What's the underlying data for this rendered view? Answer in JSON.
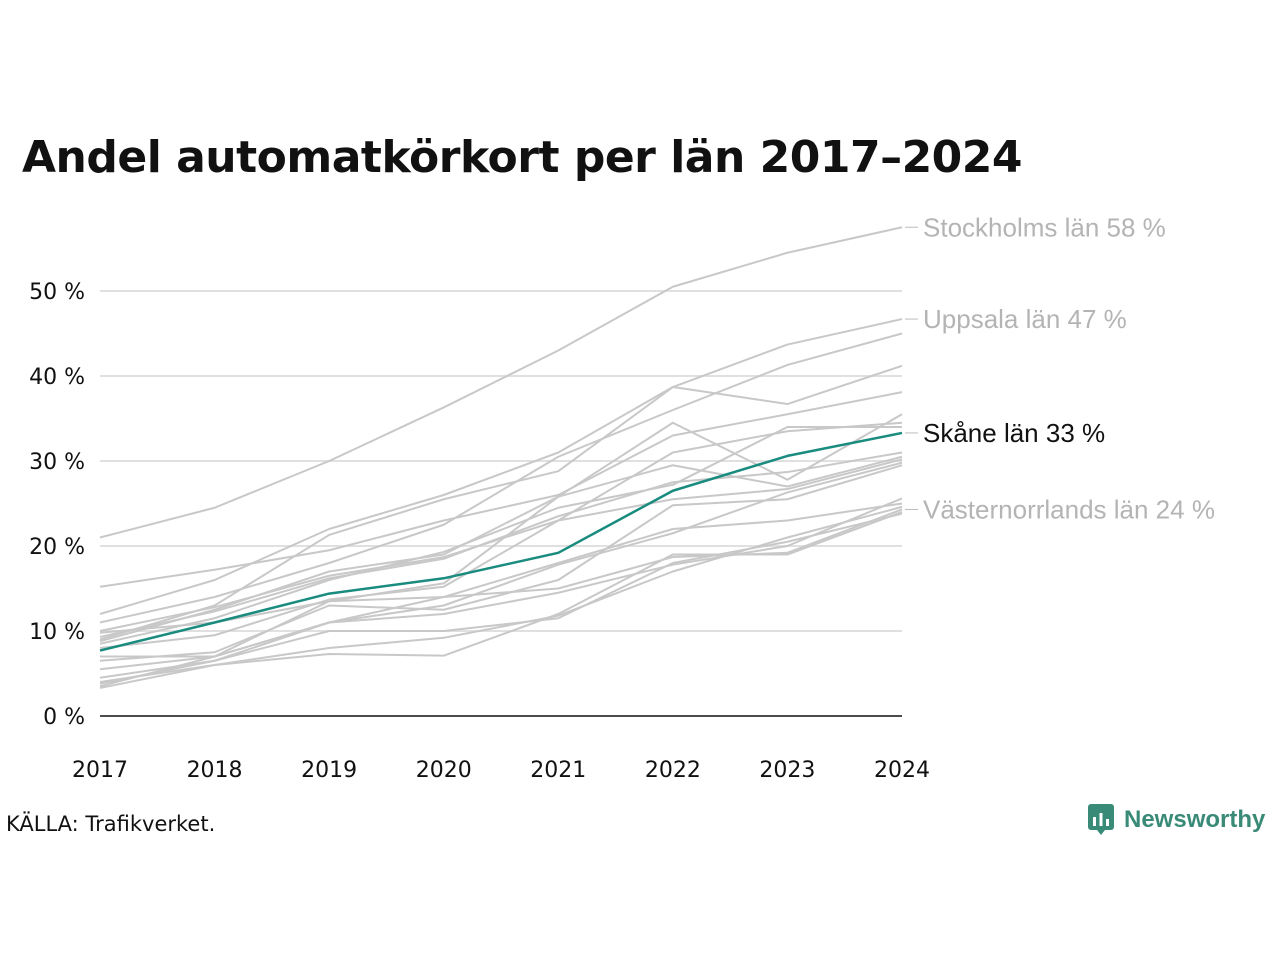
{
  "title": "Andel automatkörkort per län 2017–2024",
  "source": "KÄLLA: Trafikverket.",
  "brand": {
    "name": "Newsworthy",
    "icon": "newsworthy-logo-icon"
  },
  "colors": {
    "highlight": "#1a8b7f",
    "background_lines": "#c8c8c8",
    "grid": "#e0e0e0",
    "axis": "#111111",
    "brand": "#3a8a78"
  },
  "chart_data": {
    "type": "line",
    "x": [
      2017,
      2018,
      2019,
      2020,
      2021,
      2022,
      2023,
      2024
    ],
    "ylim": [
      0,
      60
    ],
    "yticks": [
      0,
      10,
      20,
      30,
      40,
      50
    ],
    "ytick_labels": [
      "0 %",
      "10 %",
      "20 %",
      "30 %",
      "40 %",
      "50 %"
    ],
    "xtick_labels": [
      "2017",
      "2018",
      "2019",
      "2020",
      "2021",
      "2022",
      "2023",
      "2024"
    ],
    "grid": "horizontal",
    "highlight_series": "Skåne län",
    "series": [
      {
        "name": "Stockholms län",
        "label": "Stockholms län 58 %",
        "values": [
          21,
          24.5,
          30,
          36.3,
          43,
          50.5,
          54.5,
          57.5
        ]
      },
      {
        "name": "Uppsala län",
        "label": "Uppsala län 47 %",
        "values": [
          12,
          16,
          22,
          26,
          31,
          38.7,
          43.7,
          46.7
        ]
      },
      {
        "name": "Skåne län",
        "label": "Skåne län 33 %",
        "values": [
          7.7,
          11,
          14.4,
          16.2,
          19.2,
          26.5,
          30.6,
          33.3
        ]
      },
      {
        "name": "Västernorrlands län",
        "label": "Västernorrlands län 24 %",
        "values": [
          5.5,
          7,
          11,
          14,
          15,
          18.7,
          19.2,
          24.3
        ]
      },
      {
        "values": [
          11,
          14,
          18,
          22.5,
          30.5,
          36,
          41.3,
          45
        ]
      },
      {
        "values": [
          9,
          13,
          21.3,
          25.5,
          28.8,
          38.7,
          36.7,
          41.2
        ]
      },
      {
        "values": [
          15.2,
          17.2,
          19.5,
          23,
          26,
          33,
          35.5,
          38.1
        ]
      },
      {
        "values": [
          8.8,
          12.5,
          17,
          19,
          25.8,
          34.5,
          27.8,
          35.5
        ]
      },
      {
        "values": [
          10,
          12.8,
          16.5,
          18.7,
          23,
          31,
          33.5,
          34.5
        ]
      },
      {
        "values": [
          8.5,
          11.5,
          16,
          19.3,
          24.5,
          27.2,
          34,
          34
        ]
      },
      {
        "values": [
          9.3,
          12.3,
          16.2,
          18.5,
          23.5,
          27.5,
          28.7,
          31
        ]
      },
      {
        "values": [
          3.5,
          7,
          13.5,
          15.6,
          25.8,
          29.5,
          27,
          30.5
        ]
      },
      {
        "values": [
          8,
          9.5,
          13.7,
          15.2,
          23,
          25.5,
          26.7,
          30.2
        ]
      },
      {
        "values": [
          7,
          7,
          11,
          13,
          17.8,
          21.5,
          26.3,
          29.8
        ]
      },
      {
        "values": [
          6.5,
          7.5,
          13,
          12.5,
          16,
          24.8,
          25.5,
          29.5
        ]
      },
      {
        "values": [
          4.5,
          6.5,
          11,
          12,
          14.5,
          17.8,
          20,
          25.6
        ]
      },
      {
        "values": [
          9.8,
          11,
          13.5,
          14,
          18,
          22,
          23,
          25
        ]
      },
      {
        "values": [
          3.3,
          6,
          8,
          9.2,
          11.8,
          17,
          21,
          24.6
        ]
      },
      {
        "values": [
          4,
          6,
          7.3,
          7.1,
          12,
          19,
          19,
          24
        ]
      },
      {
        "values": [
          3.8,
          6.5,
          10,
          10,
          11.5,
          18,
          20.5,
          23.8
        ]
      }
    ]
  }
}
